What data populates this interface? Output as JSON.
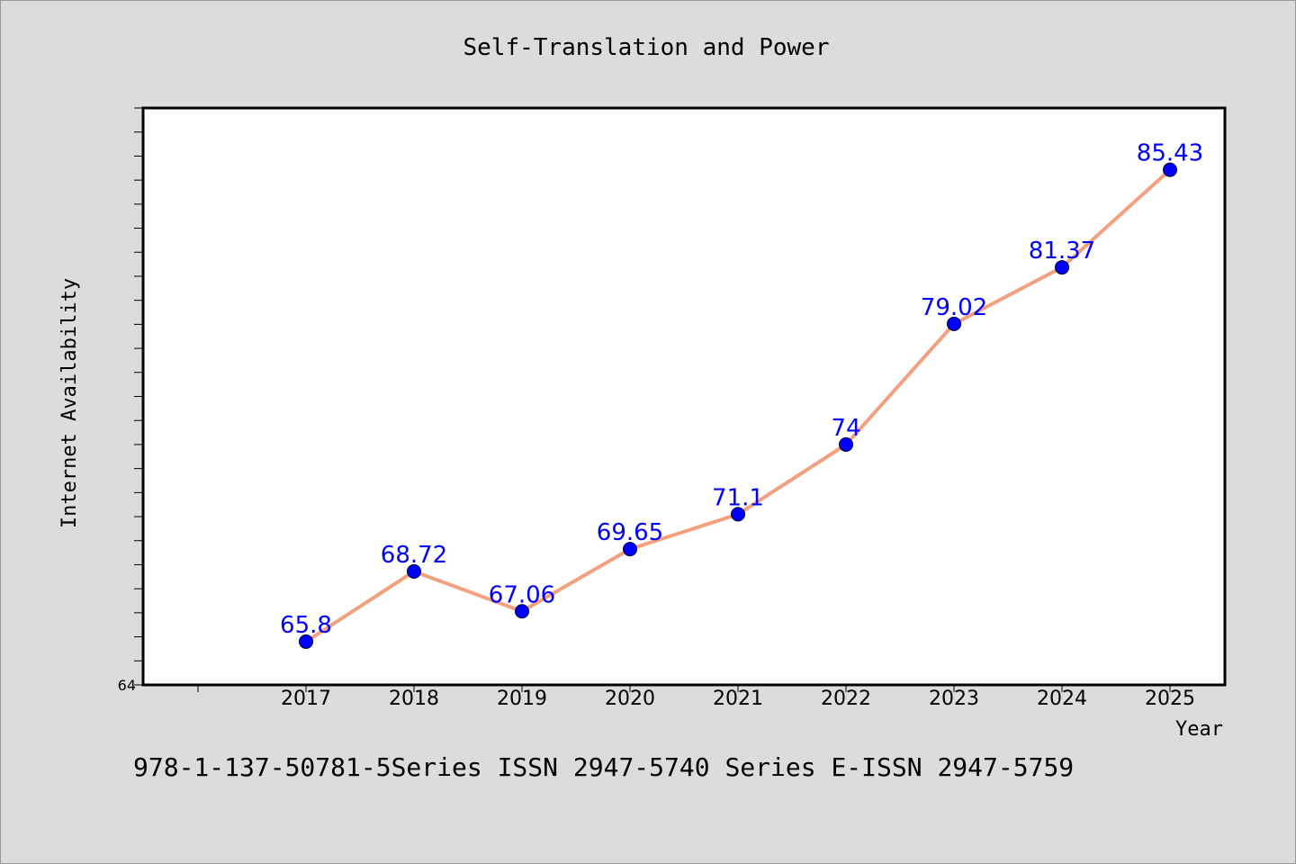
{
  "page": {
    "footer": "978-1-137-50781-5Series ISSN 2947-5740 Series E-ISSN 2947-5759"
  },
  "colors": {
    "background": "#dcdcdc",
    "plot_background": "#ffffff",
    "line": "#f4a07e",
    "marker": "#0000ff",
    "data_label": "#0000ff"
  },
  "chart_data": {
    "type": "line",
    "title": "Self-Translation and Power",
    "xlabel": "Year",
    "ylabel": "Internet Availability",
    "categories": [
      "2017",
      "2018",
      "2019",
      "2020",
      "2021",
      "2022",
      "2023",
      "2024",
      "2025"
    ],
    "series": [
      {
        "values": [
          65.8,
          68.72,
          67.06,
          69.65,
          71.1,
          74,
          79.02,
          81.37,
          85.43
        ],
        "labels": [
          "65.8",
          "68.72",
          "67.06",
          "69.65",
          "71.1",
          "74",
          "79.02",
          "81.37",
          "85.43"
        ]
      }
    ],
    "ylim": [
      64,
      88
    ],
    "y_tick_labels": [
      "64"
    ],
    "grid": false,
    "legend": "none"
  }
}
